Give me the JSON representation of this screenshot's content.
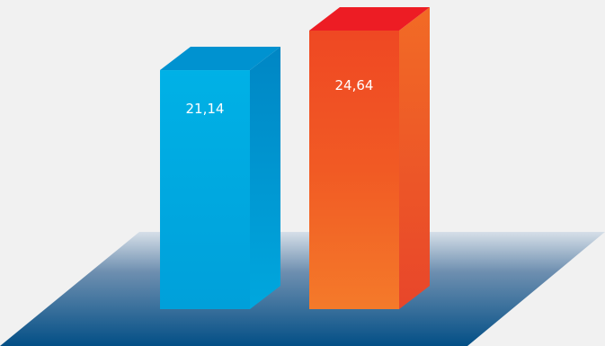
{
  "chart_data": {
    "type": "bar",
    "style": "3d",
    "categories": [
      "",
      ""
    ],
    "values": [
      21.14,
      24.64
    ],
    "value_labels": [
      "21,14",
      "24,64"
    ],
    "colors": [
      "#00a9e0",
      "#f15a24"
    ],
    "title": "",
    "xlabel": "",
    "ylabel": "",
    "grid": false,
    "legend": "none"
  }
}
